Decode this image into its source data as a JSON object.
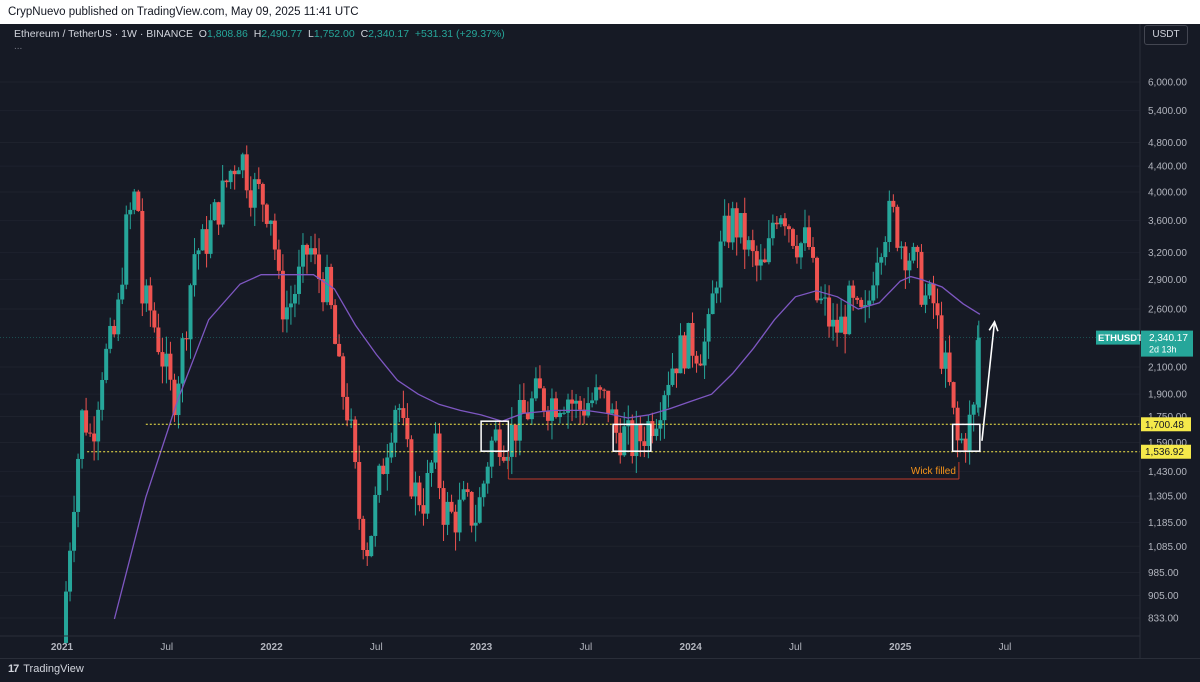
{
  "header": {
    "published": "CrypNuevo published on TradingView.com, May 09, 2025 11:41 UTC"
  },
  "legend": {
    "symbol": "Ethereum / TetherUS · 1W · BINANCE",
    "o_label": "O",
    "o_value": "1,808.86",
    "h_label": "H",
    "h_value": "2,490.77",
    "l_label": "L",
    "l_value": "1,752.00",
    "c_label": "C",
    "c_value": "2,340.17",
    "change": "+531.31 (+29.37%)",
    "more": "..."
  },
  "currency_button": "USDT",
  "branding": {
    "logo": "17",
    "name": "TradingView"
  },
  "colors": {
    "up": "#26a69a",
    "down": "#ef5350",
    "ma": "#7e57c2",
    "level": "#f5e94a",
    "annotation": "#f7931a",
    "background": "#161a25"
  },
  "chart_data": {
    "type": "candlestick",
    "symbol": "ETHUSDT",
    "interval": "1W",
    "scale": "log",
    "ylim": [
      800,
      6800
    ],
    "y_ticks": [
      "6,000.00",
      "5,400.00",
      "4,800.00",
      "4,400.00",
      "4,000.00",
      "3,600.00",
      "3,200.00",
      "2,900.00",
      "2,600.00",
      "2,100.00",
      "1,900.00",
      "1,750.00",
      "1,590.00",
      "1,430.00",
      "1,305.00",
      "1,185.00",
      "1,085.00",
      "985.00",
      "905.00",
      "833.00"
    ],
    "x_ticks": [
      {
        "label": "2021",
        "t": 2021.0
      },
      {
        "label": "Jul",
        "t": 2021.5
      },
      {
        "label": "2022",
        "t": 2022.0
      },
      {
        "label": "Jul",
        "t": 2022.5
      },
      {
        "label": "2023",
        "t": 2023.0
      },
      {
        "label": "Jul",
        "t": 2023.5
      },
      {
        "label": "2024",
        "t": 2024.0
      },
      {
        "label": "Jul",
        "t": 2024.5
      },
      {
        "label": "2025",
        "t": 2025.0
      },
      {
        "label": "Jul",
        "t": 2025.5
      }
    ],
    "x_range": [
      2020.97,
      2025.82
    ],
    "price_path": [
      [
        2021.0,
        760
      ],
      [
        2021.05,
        1250
      ],
      [
        2021.1,
        1800
      ],
      [
        2021.14,
        1600
      ],
      [
        2021.19,
        2100
      ],
      [
        2021.26,
        2400
      ],
      [
        2021.3,
        3400
      ],
      [
        2021.36,
        4100
      ],
      [
        2021.38,
        2700
      ],
      [
        2021.42,
        2600
      ],
      [
        2021.47,
        2250
      ],
      [
        2021.53,
        1850
      ],
      [
        2021.58,
        2300
      ],
      [
        2021.63,
        3200
      ],
      [
        2021.68,
        3300
      ],
      [
        2021.72,
        3600
      ],
      [
        2021.76,
        3900
      ],
      [
        2021.8,
        4300
      ],
      [
        2021.85,
        4650
      ],
      [
        2021.9,
        4100
      ],
      [
        2021.95,
        3950
      ],
      [
        2022.0,
        3700
      ],
      [
        2022.04,
        2700
      ],
      [
        2022.08,
        2600
      ],
      [
        2022.13,
        2900
      ],
      [
        2022.18,
        3300
      ],
      [
        2022.22,
        2950
      ],
      [
        2022.27,
        2800
      ],
      [
        2022.32,
        2050
      ],
      [
        2022.37,
        1750
      ],
      [
        2022.42,
        1200
      ],
      [
        2022.46,
        1080
      ],
      [
        2022.51,
        1350
      ],
      [
        2022.56,
        1650
      ],
      [
        2022.6,
        1900
      ],
      [
        2022.64,
        1550
      ],
      [
        2022.68,
        1330
      ],
      [
        2022.73,
        1290
      ],
      [
        2022.78,
        1550
      ],
      [
        2022.82,
        1250
      ],
      [
        2022.87,
        1200
      ],
      [
        2022.92,
        1270
      ],
      [
        2022.97,
        1200
      ],
      [
        2023.0,
        1300
      ],
      [
        2023.04,
        1560
      ],
      [
        2023.08,
        1650
      ],
      [
        2023.12,
        1600
      ],
      [
        2023.17,
        1700
      ],
      [
        2023.22,
        1780
      ],
      [
        2023.27,
        1900
      ],
      [
        2023.31,
        1850
      ],
      [
        2023.36,
        1870
      ],
      [
        2023.41,
        1900
      ],
      [
        2023.46,
        1790
      ],
      [
        2023.51,
        1850
      ],
      [
        2023.56,
        1870
      ],
      [
        2023.61,
        1830
      ],
      [
        2023.64,
        1650
      ],
      [
        2023.68,
        1640
      ],
      [
        2023.72,
        1580
      ],
      [
        2023.76,
        1620
      ],
      [
        2023.8,
        1700
      ],
      [
        2023.84,
        1800
      ],
      [
        2023.88,
        2000
      ],
      [
        2023.92,
        2150
      ],
      [
        2023.96,
        2250
      ],
      [
        2024.0,
        2300
      ],
      [
        2024.04,
        2250
      ],
      [
        2024.08,
        2300
      ],
      [
        2024.12,
        2950
      ],
      [
        2024.16,
        3400
      ],
      [
        2024.2,
        3600
      ],
      [
        2024.24,
        3450
      ],
      [
        2024.28,
        3200
      ],
      [
        2024.32,
        3000
      ],
      [
        2024.36,
        3000
      ],
      [
        2024.4,
        3750
      ],
      [
        2024.44,
        3800
      ],
      [
        2024.48,
        3500
      ],
      [
        2024.52,
        3300
      ],
      [
        2024.56,
        3350
      ],
      [
        2024.6,
        2700
      ],
      [
        2024.64,
        2600
      ],
      [
        2024.68,
        2400
      ],
      [
        2024.72,
        2450
      ],
      [
        2024.76,
        2650
      ],
      [
        2024.8,
        2500
      ],
      [
        2024.84,
        2500
      ],
      [
        2024.88,
        3200
      ],
      [
        2024.92,
        3500
      ],
      [
        2024.96,
        3700
      ],
      [
        2025.0,
        3350
      ],
      [
        2025.04,
        3200
      ],
      [
        2025.08,
        3000
      ],
      [
        2025.12,
        2700
      ],
      [
        2025.16,
        2650
      ],
      [
        2025.2,
        2200
      ],
      [
        2025.24,
        1900
      ],
      [
        2025.27,
        1580
      ],
      [
        2025.3,
        1600
      ],
      [
        2025.33,
        1700
      ],
      [
        2025.36,
        1810
      ],
      [
        2025.37,
        2340
      ]
    ],
    "series": [
      {
        "name": "MA",
        "points": [
          [
            2021.25,
            830
          ],
          [
            2021.4,
            1300
          ],
          [
            2021.55,
            1850
          ],
          [
            2021.7,
            2500
          ],
          [
            2021.85,
            2850
          ],
          [
            2021.95,
            2950
          ],
          [
            2022.05,
            2950
          ],
          [
            2022.2,
            2950
          ],
          [
            2022.3,
            2800
          ],
          [
            2022.4,
            2450
          ],
          [
            2022.5,
            2200
          ],
          [
            2022.6,
            2000
          ],
          [
            2022.7,
            1900
          ],
          [
            2022.8,
            1830
          ],
          [
            2022.9,
            1790
          ],
          [
            2023.0,
            1760
          ],
          [
            2023.1,
            1720
          ],
          [
            2023.2,
            1770
          ],
          [
            2023.35,
            1790
          ],
          [
            2023.5,
            1790
          ],
          [
            2023.6,
            1770
          ],
          [
            2023.7,
            1740
          ],
          [
            2023.8,
            1760
          ],
          [
            2023.9,
            1800
          ],
          [
            2024.0,
            1850
          ],
          [
            2024.1,
            1900
          ],
          [
            2024.2,
            2050
          ],
          [
            2024.3,
            2250
          ],
          [
            2024.4,
            2500
          ],
          [
            2024.5,
            2720
          ],
          [
            2024.6,
            2780
          ],
          [
            2024.7,
            2720
          ],
          [
            2024.8,
            2600
          ],
          [
            2024.9,
            2660
          ],
          [
            2025.0,
            2880
          ],
          [
            2025.05,
            2930
          ],
          [
            2025.1,
            2900
          ],
          [
            2025.2,
            2820
          ],
          [
            2025.3,
            2650
          ],
          [
            2025.38,
            2550
          ]
        ]
      }
    ],
    "levels": [
      {
        "price": 1700.48,
        "label": "1,700.48",
        "start": 2021.4
      },
      {
        "price": 1536.92,
        "label": "1,536.92",
        "start": 2021.12
      }
    ],
    "boxes": [
      {
        "t0": 2023.0,
        "t1": 2023.13,
        "p0": 1540,
        "p1": 1720
      },
      {
        "t0": 2023.63,
        "t1": 2023.81,
        "p0": 1540,
        "p1": 1700
      },
      {
        "t0": 2025.25,
        "t1": 2025.38,
        "p0": 1540,
        "p1": 1700
      }
    ],
    "wick_line": {
      "t0": 2023.13,
      "t1": 2025.28,
      "price": 1390,
      "label": "Wick filled"
    },
    "arrow": {
      "t0": 2025.39,
      "p0": 1600,
      "t1": 2025.45,
      "p1": 2480
    },
    "current_price": {
      "symbol": "ETHUSDT",
      "price": "2,340.17",
      "value": 2340.17,
      "countdown": "2d 13h"
    }
  }
}
